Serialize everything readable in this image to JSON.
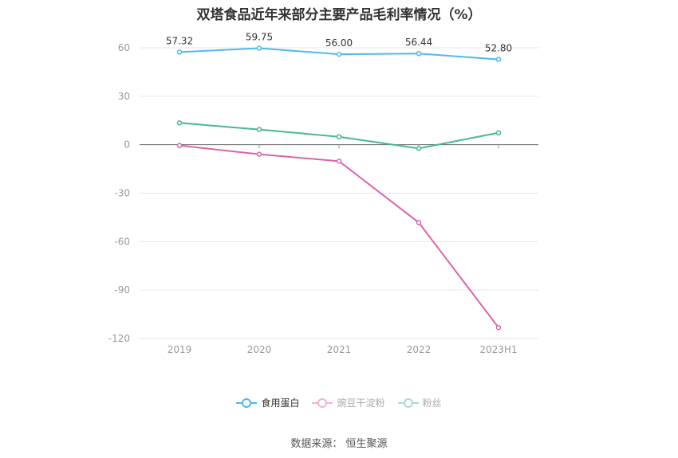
{
  "chart_data": {
    "type": "line",
    "title": "双塔食品近年来部分主要产品毛利率情况（%）",
    "categories": [
      "2019",
      "2020",
      "2021",
      "2022",
      "2023H1"
    ],
    "ylim": [
      -120,
      60
    ],
    "yticks": [
      60,
      30,
      0,
      -30,
      -60,
      -90,
      -120
    ],
    "grid": true,
    "legend_position": "bottom",
    "series": [
      {
        "name": "食用蛋白",
        "color": "#4fb8f0",
        "values": [
          57.32,
          59.75,
          56.0,
          56.44,
          52.8
        ],
        "labels": [
          "57.32",
          "59.75",
          "56.00",
          "56.44",
          "52.80"
        ],
        "legend_color": "#4fb8f0",
        "legend_text_color": "#333333"
      },
      {
        "name": "豌豆干淀粉",
        "color": "#d965aa",
        "values": [
          -0.5,
          -5.9,
          -10.2,
          -48.2,
          -113.2
        ],
        "legend_color": "#eeb3d6",
        "legend_text_color": "#aaaaaa"
      },
      {
        "name": "粉丝",
        "color": "#47b796",
        "values": [
          13.5,
          9.4,
          4.9,
          -2.3,
          7.4
        ],
        "legend_color": "#a8dccc",
        "legend_text_color": "#aaaaaa"
      }
    ]
  },
  "source": "数据来源：  恒生聚源"
}
